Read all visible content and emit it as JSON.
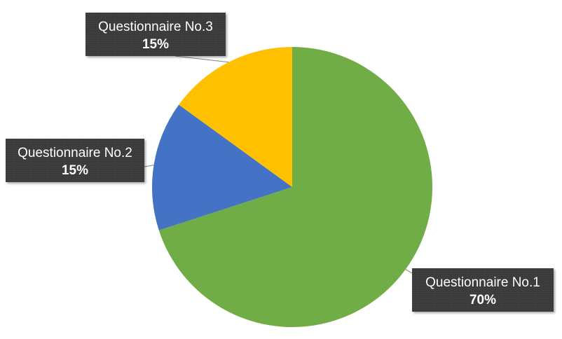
{
  "chart_data": {
    "type": "pie",
    "slices": [
      {
        "label": "Questionnaire No.1",
        "value": 70,
        "display": "70%",
        "color": "#70AD47"
      },
      {
        "label": "Questionnaire No.2",
        "value": 15,
        "display": "15%",
        "color": "#4472C4"
      },
      {
        "label": "Questionnaire No.3",
        "value": 15,
        "display": "15%",
        "color": "#FFC000"
      }
    ],
    "title": "",
    "legend": "none",
    "callout_color": "#3a3a3a"
  }
}
